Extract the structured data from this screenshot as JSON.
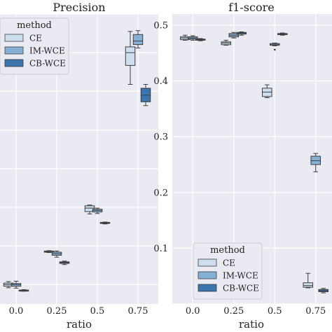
{
  "colors": {
    "CE": "#cddeee",
    "IM-WCE": "#86b1d7",
    "CB-WCE": "#3a75ad",
    "background": "#eaeaf2",
    "grid": "#ffffff",
    "line": "#3d3d3d"
  },
  "chart_data": [
    {
      "type": "box",
      "title": "Precision",
      "xlabel": "ratio",
      "ylabel": "",
      "categories": [
        "0.0",
        "0.25",
        "0.5",
        "0.75"
      ],
      "y_ticks": [],
      "ylim": [
        0.15,
        0.9
      ],
      "grid": true,
      "legend": {
        "title": "method",
        "position": "top-left",
        "entries": [
          "CE",
          "IM-WCE",
          "CB-WCE"
        ]
      },
      "series": [
        {
          "name": "CE",
          "boxes": [
            {
              "whislo": 0.192,
              "q1": 0.196,
              "med": 0.2,
              "q3": 0.204,
              "whishi": 0.208
            },
            {
              "whislo": 0.283,
              "q1": 0.284,
              "med": 0.285,
              "q3": 0.287,
              "whishi": 0.288
            },
            {
              "whislo": 0.383,
              "q1": 0.389,
              "med": 0.398,
              "q3": 0.404,
              "whishi": 0.406
            },
            {
              "whislo": 0.718,
              "q1": 0.767,
              "med": 0.8,
              "q3": 0.815,
              "whishi": 0.855
            }
          ]
        },
        {
          "name": "IM-WCE",
          "boxes": [
            {
              "whislo": 0.191,
              "q1": 0.196,
              "med": 0.2,
              "q3": 0.203,
              "whishi": 0.209
            },
            {
              "whislo": 0.271,
              "q1": 0.276,
              "med": 0.28,
              "q3": 0.284,
              "whishi": 0.287
            },
            {
              "whislo": 0.384,
              "q1": 0.388,
              "med": 0.392,
              "q3": 0.395,
              "whishi": 0.398
            },
            {
              "whislo": 0.812,
              "q1": 0.821,
              "med": 0.83,
              "q3": 0.847,
              "whishi": 0.857
            }
          ]
        },
        {
          "name": "CB-WCE",
          "boxes": [
            {
              "whislo": 0.183,
              "q1": 0.184,
              "med": 0.185,
              "q3": 0.186,
              "whishi": 0.187
            },
            {
              "whislo": 0.252,
              "q1": 0.255,
              "med": 0.257,
              "q3": 0.259,
              "whishi": 0.261
            },
            {
              "whislo": 0.357,
              "q1": 0.359,
              "med": 0.36,
              "q3": 0.361,
              "whishi": 0.362
            },
            {
              "whislo": 0.663,
              "q1": 0.673,
              "med": 0.69,
              "q3": 0.708,
              "whishi": 0.718
            }
          ]
        }
      ]
    },
    {
      "type": "box",
      "title": "f1-score",
      "xlabel": "ratio",
      "ylabel": "",
      "categories": [
        "0.0",
        "0.25",
        "0.5",
        "0.75"
      ],
      "y_ticks": [
        0.1,
        0.2,
        0.3,
        0.4,
        0.5
      ],
      "ylim": [
        0.0,
        0.52
      ],
      "grid": true,
      "legend": {
        "title": "method",
        "position": "bottom-left",
        "entries": [
          "CE",
          "IM-WCE",
          "CB-WCE"
        ]
      },
      "series": [
        {
          "name": "CE",
          "boxes": [
            {
              "whislo": 0.473,
              "q1": 0.474,
              "med": 0.477,
              "q3": 0.479,
              "whishi": 0.482
            },
            {
              "whislo": 0.464,
              "q1": 0.465,
              "med": 0.468,
              "q3": 0.47,
              "whishi": 0.473
            },
            {
              "whislo": 0.37,
              "q1": 0.372,
              "med": 0.38,
              "q3": 0.387,
              "whishi": 0.393
            },
            {
              "whislo": 0.029,
              "q1": 0.03,
              "med": 0.033,
              "q3": 0.038,
              "whishi": 0.055
            }
          ]
        },
        {
          "name": "IM-WCE",
          "boxes": [
            {
              "whislo": 0.473,
              "q1": 0.475,
              "med": 0.477,
              "q3": 0.479,
              "whishi": 0.481
            },
            {
              "whislo": 0.477,
              "q1": 0.479,
              "med": 0.482,
              "q3": 0.485,
              "whishi": 0.487
            },
            {
              "whislo": 0.463,
              "q1": 0.464,
              "med": 0.465,
              "q3": 0.467,
              "whishi": 0.468,
              "fliers": [
                0.456
              ]
            },
            {
              "whislo": 0.237,
              "q1": 0.25,
              "med": 0.257,
              "q3": 0.265,
              "whishi": 0.27
            }
          ]
        },
        {
          "name": "CB-WCE",
          "boxes": [
            {
              "whislo": 0.472,
              "q1": 0.473,
              "med": 0.474,
              "q3": 0.475,
              "whishi": 0.476
            },
            {
              "whislo": 0.482,
              "q1": 0.484,
              "med": 0.486,
              "q3": 0.487,
              "whishi": 0.488
            },
            {
              "whislo": 0.482,
              "q1": 0.483,
              "med": 0.484,
              "q3": 0.485,
              "whishi": 0.486
            },
            {
              "whislo": 0.02,
              "q1": 0.022,
              "med": 0.024,
              "q3": 0.026,
              "whishi": 0.028
            }
          ]
        }
      ]
    }
  ]
}
